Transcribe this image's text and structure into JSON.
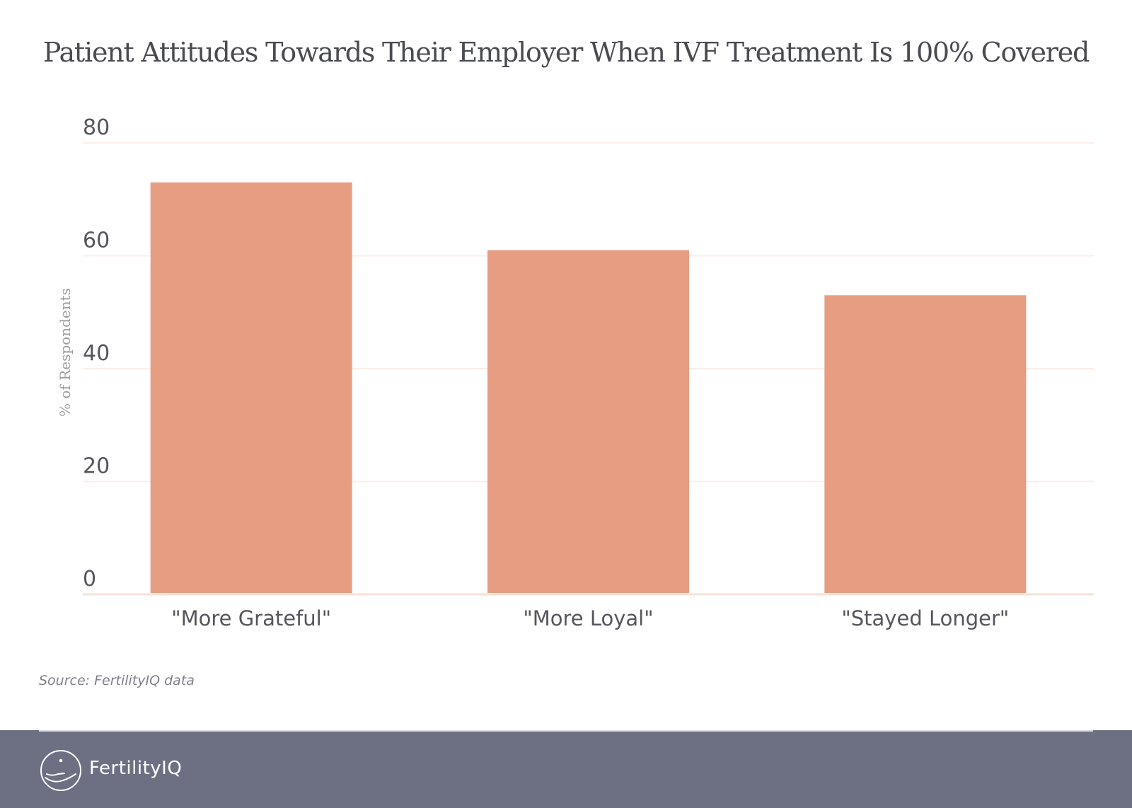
{
  "chart_data": {
    "type": "bar",
    "title": "Patient Attitudes Towards Their Employer When IVF Treatment Is 100% Covered",
    "categories": [
      "\"More Grateful\"",
      "\"More Loyal\"",
      "\"Stayed Longer\""
    ],
    "values": [
      73,
      61,
      53
    ],
    "ylabel": "% of Respondents",
    "xlabel": "",
    "ylim": [
      0,
      80
    ],
    "yticks": [
      0,
      20,
      40,
      60,
      80
    ],
    "grid": true,
    "bar_color": "#e79d82",
    "grid_color": "#fbeee8"
  },
  "source": "Source: FertilityIQ data",
  "footer": {
    "brand": "FertilityIQ",
    "background": "#6d7083",
    "logo_icon": "hand-holding-circle-icon"
  }
}
